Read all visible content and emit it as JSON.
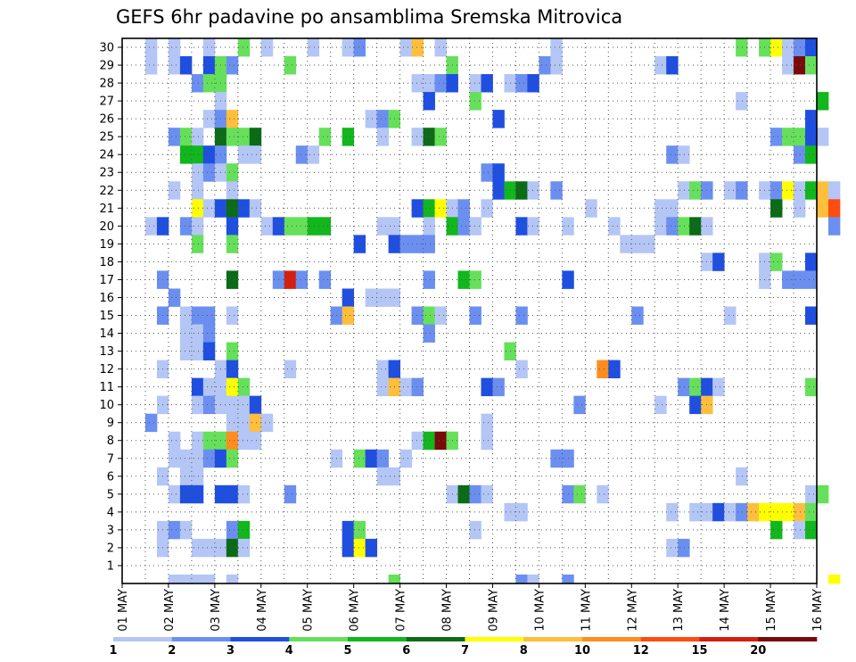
{
  "chart_data": {
    "type": "heatmap",
    "title": "GEFS 6hr padavine po ansamblima Sremska Mitrovica",
    "x_tick_labels": [
      "01 MAY",
      "02 MAY",
      "03 MAY",
      "04 MAY",
      "05 MAY",
      "06 MAY",
      "07 MAY",
      "08 MAY",
      "09 MAY",
      "10 MAY",
      "11 MAY",
      "12 MAY",
      "13 MAY",
      "14 MAY",
      "15 MAY",
      "16 MAY"
    ],
    "y_tick_labels": [
      "1",
      "2",
      "3",
      "4",
      "5",
      "6",
      "7",
      "8",
      "9",
      "10",
      "11",
      "12",
      "13",
      "14",
      "15",
      "16",
      "17",
      "18",
      "19",
      "20",
      "21",
      "22",
      "23",
      "24",
      "25",
      "26",
      "27",
      "28",
      "29",
      "30"
    ],
    "time_steps_per_day": 4,
    "ylim": [
      0,
      30
    ],
    "grid": true,
    "colorbar": {
      "labels": [
        "1",
        "2",
        "3",
        "4",
        "5",
        "6",
        "7",
        "8",
        "10",
        "12",
        "15",
        "20"
      ],
      "colors": [
        "#b4c6f5",
        "#6b8ff0",
        "#1f4fe0",
        "#66e05a",
        "#11b71c",
        "#0b6b17",
        "#ffff00",
        "#ffbe3c",
        "#ff8d1e",
        "#ff4c10",
        "#d41f10",
        "#7a0a0a"
      ]
    },
    "cells": [
      [
        2,
        30,
        0
      ],
      [
        4,
        30,
        0
      ],
      [
        7,
        30,
        0
      ],
      [
        10,
        30,
        3
      ],
      [
        12,
        30,
        0
      ],
      [
        16,
        30,
        0
      ],
      [
        19,
        30,
        0
      ],
      [
        20,
        30,
        1
      ],
      [
        24,
        30,
        0
      ],
      [
        25,
        30,
        7
      ],
      [
        27,
        30,
        0
      ],
      [
        37,
        30,
        0
      ],
      [
        53,
        30,
        3
      ],
      [
        55,
        30,
        3
      ],
      [
        56,
        30,
        6
      ],
      [
        57,
        30,
        0
      ],
      [
        58,
        30,
        1
      ],
      [
        59,
        30,
        2
      ],
      [
        2,
        29,
        0
      ],
      [
        4,
        29,
        0
      ],
      [
        5,
        29,
        2
      ],
      [
        7,
        29,
        2
      ],
      [
        8,
        29,
        3
      ],
      [
        9,
        29,
        1
      ],
      [
        14,
        29,
        3
      ],
      [
        28,
        29,
        3
      ],
      [
        36,
        29,
        1
      ],
      [
        37,
        29,
        0
      ],
      [
        46,
        29,
        0
      ],
      [
        47,
        29,
        2
      ],
      [
        57,
        29,
        0
      ],
      [
        58,
        29,
        11
      ],
      [
        59,
        29,
        3
      ],
      [
        6,
        28,
        1
      ],
      [
        7,
        28,
        3
      ],
      [
        8,
        28,
        3
      ],
      [
        25,
        28,
        0
      ],
      [
        26,
        28,
        0
      ],
      [
        27,
        28,
        1
      ],
      [
        28,
        28,
        2
      ],
      [
        30,
        28,
        0
      ],
      [
        31,
        28,
        2
      ],
      [
        33,
        28,
        0
      ],
      [
        34,
        28,
        1
      ],
      [
        35,
        28,
        2
      ],
      [
        8,
        27,
        0
      ],
      [
        26,
        27,
        2
      ],
      [
        30,
        27,
        3
      ],
      [
        53,
        27,
        0
      ],
      [
        60,
        27,
        4
      ],
      [
        7,
        26,
        0
      ],
      [
        8,
        26,
        1
      ],
      [
        9,
        26,
        7
      ],
      [
        21,
        26,
        0
      ],
      [
        22,
        26,
        1
      ],
      [
        23,
        26,
        3
      ],
      [
        32,
        26,
        2
      ],
      [
        59,
        26,
        2
      ],
      [
        4,
        25,
        1
      ],
      [
        5,
        25,
        3
      ],
      [
        6,
        25,
        0
      ],
      [
        8,
        25,
        5
      ],
      [
        9,
        25,
        3
      ],
      [
        10,
        25,
        3
      ],
      [
        11,
        25,
        5
      ],
      [
        17,
        25,
        3
      ],
      [
        19,
        25,
        4
      ],
      [
        22,
        25,
        0
      ],
      [
        25,
        25,
        0
      ],
      [
        26,
        25,
        5
      ],
      [
        27,
        25,
        3
      ],
      [
        56,
        25,
        1
      ],
      [
        57,
        25,
        3
      ],
      [
        58,
        25,
        3
      ],
      [
        59,
        25,
        2
      ],
      [
        60,
        25,
        0
      ],
      [
        5,
        24,
        4
      ],
      [
        6,
        24,
        4
      ],
      [
        7,
        24,
        2
      ],
      [
        8,
        24,
        1
      ],
      [
        10,
        24,
        0
      ],
      [
        11,
        24,
        0
      ],
      [
        15,
        24,
        1
      ],
      [
        16,
        24,
        0
      ],
      [
        47,
        24,
        1
      ],
      [
        48,
        24,
        0
      ],
      [
        58,
        24,
        1
      ],
      [
        59,
        24,
        4
      ],
      [
        6,
        23,
        0
      ],
      [
        7,
        23,
        1
      ],
      [
        8,
        23,
        0
      ],
      [
        9,
        23,
        3
      ],
      [
        31,
        23,
        1
      ],
      [
        32,
        23,
        2
      ],
      [
        4,
        22,
        0
      ],
      [
        6,
        22,
        0
      ],
      [
        9,
        22,
        0
      ],
      [
        32,
        22,
        2
      ],
      [
        33,
        22,
        4
      ],
      [
        34,
        22,
        5
      ],
      [
        35,
        22,
        0
      ],
      [
        37,
        22,
        1
      ],
      [
        48,
        22,
        0
      ],
      [
        49,
        22,
        3
      ],
      [
        50,
        22,
        1
      ],
      [
        52,
        22,
        0
      ],
      [
        53,
        22,
        1
      ],
      [
        55,
        22,
        0
      ],
      [
        56,
        22,
        1
      ],
      [
        57,
        22,
        6
      ],
      [
        58,
        22,
        0
      ],
      [
        59,
        22,
        4
      ],
      [
        60,
        22,
        7
      ],
      [
        61,
        22,
        0
      ],
      [
        6,
        21,
        6
      ],
      [
        7,
        21,
        0
      ],
      [
        8,
        21,
        2
      ],
      [
        9,
        21,
        5
      ],
      [
        10,
        21,
        2
      ],
      [
        11,
        21,
        0
      ],
      [
        25,
        21,
        2
      ],
      [
        26,
        21,
        4
      ],
      [
        27,
        21,
        6
      ],
      [
        28,
        21,
        0
      ],
      [
        29,
        21,
        1
      ],
      [
        31,
        21,
        0
      ],
      [
        40,
        21,
        0
      ],
      [
        46,
        21,
        0
      ],
      [
        47,
        21,
        0
      ],
      [
        56,
        21,
        5
      ],
      [
        58,
        21,
        0
      ],
      [
        60,
        21,
        7
      ],
      [
        61,
        21,
        9
      ],
      [
        2,
        20,
        0
      ],
      [
        3,
        20,
        2
      ],
      [
        5,
        20,
        1
      ],
      [
        6,
        20,
        0
      ],
      [
        9,
        20,
        2
      ],
      [
        12,
        20,
        0
      ],
      [
        13,
        20,
        2
      ],
      [
        14,
        20,
        3
      ],
      [
        15,
        20,
        3
      ],
      [
        16,
        20,
        4
      ],
      [
        17,
        20,
        4
      ],
      [
        22,
        20,
        0
      ],
      [
        23,
        20,
        0
      ],
      [
        26,
        20,
        0
      ],
      [
        28,
        20,
        4
      ],
      [
        29,
        20,
        1
      ],
      [
        30,
        20,
        0
      ],
      [
        34,
        20,
        2
      ],
      [
        35,
        20,
        0
      ],
      [
        38,
        20,
        0
      ],
      [
        42,
        20,
        0
      ],
      [
        46,
        20,
        0
      ],
      [
        47,
        20,
        1
      ],
      [
        48,
        20,
        3
      ],
      [
        49,
        20,
        5
      ],
      [
        50,
        20,
        0
      ],
      [
        61,
        20,
        1
      ],
      [
        6,
        19,
        3
      ],
      [
        9,
        19,
        3
      ],
      [
        20,
        19,
        2
      ],
      [
        23,
        19,
        2
      ],
      [
        24,
        19,
        1
      ],
      [
        25,
        19,
        1
      ],
      [
        26,
        19,
        1
      ],
      [
        43,
        19,
        0
      ],
      [
        44,
        19,
        0
      ],
      [
        45,
        19,
        0
      ],
      [
        50,
        18,
        0
      ],
      [
        51,
        18,
        2
      ],
      [
        55,
        18,
        0
      ],
      [
        56,
        18,
        3
      ],
      [
        59,
        18,
        2
      ],
      [
        3,
        17,
        1
      ],
      [
        9,
        17,
        5
      ],
      [
        13,
        17,
        1
      ],
      [
        14,
        17,
        10
      ],
      [
        15,
        17,
        1
      ],
      [
        17,
        17,
        1
      ],
      [
        26,
        17,
        1
      ],
      [
        29,
        17,
        4
      ],
      [
        30,
        17,
        3
      ],
      [
        38,
        17,
        2
      ],
      [
        55,
        17,
        0
      ],
      [
        57,
        17,
        1
      ],
      [
        58,
        17,
        1
      ],
      [
        59,
        17,
        1
      ],
      [
        4,
        16,
        1
      ],
      [
        19,
        16,
        2
      ],
      [
        21,
        16,
        0
      ],
      [
        22,
        16,
        0
      ],
      [
        23,
        16,
        0
      ],
      [
        3,
        15,
        1
      ],
      [
        5,
        15,
        0
      ],
      [
        6,
        15,
        1
      ],
      [
        7,
        15,
        1
      ],
      [
        9,
        15,
        0
      ],
      [
        18,
        15,
        1
      ],
      [
        19,
        15,
        7
      ],
      [
        25,
        15,
        1
      ],
      [
        26,
        15,
        3
      ],
      [
        27,
        15,
        0
      ],
      [
        30,
        15,
        1
      ],
      [
        34,
        15,
        1
      ],
      [
        44,
        15,
        1
      ],
      [
        52,
        15,
        0
      ],
      [
        59,
        15,
        2
      ],
      [
        5,
        14,
        0
      ],
      [
        6,
        14,
        0
      ],
      [
        7,
        14,
        1
      ],
      [
        26,
        14,
        1
      ],
      [
        5,
        13,
        0
      ],
      [
        6,
        13,
        0
      ],
      [
        7,
        13,
        2
      ],
      [
        9,
        13,
        3
      ],
      [
        33,
        13,
        3
      ],
      [
        3,
        12,
        0
      ],
      [
        8,
        12,
        0
      ],
      [
        9,
        12,
        2
      ],
      [
        14,
        12,
        0
      ],
      [
        22,
        12,
        0
      ],
      [
        23,
        12,
        2
      ],
      [
        34,
        12,
        0
      ],
      [
        41,
        12,
        8
      ],
      [
        42,
        12,
        2
      ],
      [
        6,
        11,
        2
      ],
      [
        7,
        11,
        0
      ],
      [
        8,
        11,
        0
      ],
      [
        9,
        11,
        6
      ],
      [
        10,
        11,
        3
      ],
      [
        22,
        11,
        0
      ],
      [
        23,
        11,
        7
      ],
      [
        24,
        11,
        0
      ],
      [
        25,
        11,
        1
      ],
      [
        31,
        11,
        2
      ],
      [
        32,
        11,
        1
      ],
      [
        48,
        11,
        1
      ],
      [
        49,
        11,
        3
      ],
      [
        50,
        11,
        2
      ],
      [
        51,
        11,
        0
      ],
      [
        59,
        11,
        3
      ],
      [
        3,
        10,
        0
      ],
      [
        6,
        10,
        0
      ],
      [
        7,
        10,
        1
      ],
      [
        8,
        10,
        0
      ],
      [
        9,
        10,
        0
      ],
      [
        10,
        10,
        0
      ],
      [
        11,
        10,
        2
      ],
      [
        39,
        10,
        1
      ],
      [
        46,
        10,
        0
      ],
      [
        49,
        10,
        2
      ],
      [
        50,
        10,
        7
      ],
      [
        2,
        9,
        1
      ],
      [
        9,
        9,
        0
      ],
      [
        10,
        9,
        0
      ],
      [
        11,
        9,
        7
      ],
      [
        12,
        9,
        0
      ],
      [
        31,
        9,
        0
      ],
      [
        4,
        8,
        0
      ],
      [
        6,
        8,
        0
      ],
      [
        7,
        8,
        3
      ],
      [
        8,
        8,
        3
      ],
      [
        9,
        8,
        8
      ],
      [
        10,
        8,
        0
      ],
      [
        11,
        8,
        0
      ],
      [
        25,
        8,
        0
      ],
      [
        26,
        8,
        4
      ],
      [
        27,
        8,
        11
      ],
      [
        28,
        8,
        3
      ],
      [
        31,
        8,
        0
      ],
      [
        4,
        7,
        0
      ],
      [
        5,
        7,
        0
      ],
      [
        6,
        7,
        0
      ],
      [
        7,
        7,
        1
      ],
      [
        8,
        7,
        2
      ],
      [
        9,
        7,
        3
      ],
      [
        18,
        7,
        0
      ],
      [
        20,
        7,
        3
      ],
      [
        21,
        7,
        2
      ],
      [
        22,
        7,
        1
      ],
      [
        24,
        7,
        0
      ],
      [
        37,
        7,
        1
      ],
      [
        38,
        7,
        1
      ],
      [
        3,
        6,
        0
      ],
      [
        5,
        6,
        0
      ],
      [
        6,
        6,
        0
      ],
      [
        22,
        6,
        0
      ],
      [
        23,
        6,
        0
      ],
      [
        53,
        6,
        0
      ],
      [
        4,
        5,
        0
      ],
      [
        5,
        5,
        2
      ],
      [
        6,
        5,
        2
      ],
      [
        8,
        5,
        2
      ],
      [
        9,
        5,
        2
      ],
      [
        10,
        5,
        0
      ],
      [
        14,
        5,
        1
      ],
      [
        28,
        5,
        0
      ],
      [
        29,
        5,
        5
      ],
      [
        30,
        5,
        1
      ],
      [
        31,
        5,
        0
      ],
      [
        38,
        5,
        1
      ],
      [
        39,
        5,
        3
      ],
      [
        41,
        5,
        0
      ],
      [
        59,
        5,
        0
      ],
      [
        60,
        5,
        3
      ],
      [
        33,
        4,
        0
      ],
      [
        34,
        4,
        0
      ],
      [
        47,
        4,
        0
      ],
      [
        49,
        4,
        0
      ],
      [
        50,
        4,
        0
      ],
      [
        51,
        4,
        2
      ],
      [
        52,
        4,
        0
      ],
      [
        53,
        4,
        1
      ],
      [
        54,
        4,
        7
      ],
      [
        55,
        4,
        6
      ],
      [
        56,
        4,
        6
      ],
      [
        57,
        4,
        6
      ],
      [
        58,
        4,
        7
      ],
      [
        59,
        4,
        3
      ],
      [
        3,
        3,
        0
      ],
      [
        4,
        3,
        1
      ],
      [
        5,
        3,
        0
      ],
      [
        9,
        3,
        1
      ],
      [
        10,
        3,
        4
      ],
      [
        19,
        3,
        2
      ],
      [
        20,
        3,
        3
      ],
      [
        30,
        3,
        0
      ],
      [
        56,
        3,
        4
      ],
      [
        58,
        3,
        0
      ],
      [
        59,
        3,
        4
      ],
      [
        3,
        2,
        0
      ],
      [
        6,
        2,
        0
      ],
      [
        7,
        2,
        0
      ],
      [
        8,
        2,
        0
      ],
      [
        9,
        2,
        5
      ],
      [
        10,
        2,
        0
      ],
      [
        19,
        2,
        2
      ],
      [
        20,
        2,
        6
      ],
      [
        21,
        2,
        2
      ],
      [
        47,
        2,
        0
      ],
      [
        48,
        2,
        1
      ],
      [
        4,
        0,
        0
      ],
      [
        5,
        0,
        0
      ],
      [
        6,
        0,
        0
      ],
      [
        7,
        0,
        0
      ],
      [
        9,
        0,
        0
      ],
      [
        23,
        0,
        3
      ],
      [
        34,
        0,
        1
      ],
      [
        35,
        0,
        0
      ],
      [
        38,
        0,
        1
      ],
      [
        61,
        0,
        6
      ]
    ]
  }
}
